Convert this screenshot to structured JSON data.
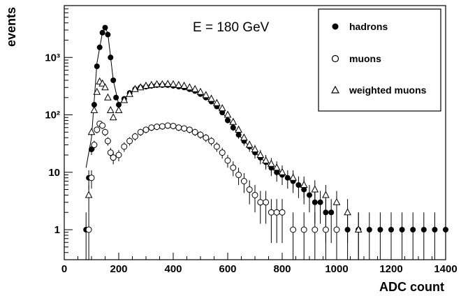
{
  "chart_data": {
    "type": "scatter",
    "annotation": "E = 180 GeV",
    "xlabel": "ADC count",
    "ylabel": "events",
    "xlim": [
      0,
      1400
    ],
    "ylim": [
      0.3,
      8000
    ],
    "yscale": "log",
    "x_ticks": [
      "0",
      "200",
      "400",
      "600",
      "800",
      "1000",
      "1200",
      "1400"
    ],
    "y_ticks": [
      {
        "value": 1,
        "label": "1"
      },
      {
        "value": 10,
        "label": "10"
      },
      {
        "value": 100,
        "label": "10²"
      },
      {
        "value": 1000,
        "label": "10³"
      }
    ],
    "legend": {
      "position": "top-right",
      "entries": [
        "hadrons",
        "muons",
        "weighted muons"
      ]
    },
    "series": [
      {
        "name": "hadrons",
        "marker": "filled-circle",
        "x": [
          80,
          90,
          100,
          110,
          120,
          130,
          140,
          150,
          160,
          170,
          180,
          190,
          200,
          220,
          240,
          260,
          280,
          300,
          320,
          340,
          360,
          380,
          400,
          420,
          440,
          460,
          480,
          500,
          520,
          540,
          560,
          580,
          600,
          620,
          640,
          660,
          680,
          700,
          720,
          740,
          760,
          780,
          800,
          820,
          840,
          860,
          880,
          900,
          920,
          940,
          960,
          980,
          1000,
          1040,
          1080,
          1120,
          1160,
          1200,
          1240,
          1280,
          1320,
          1360,
          1400
        ],
        "y": [
          1,
          8,
          25,
          150,
          700,
          1500,
          2700,
          3300,
          2500,
          1000,
          400,
          200,
          150,
          190,
          240,
          280,
          300,
          310,
          320,
          330,
          330,
          330,
          320,
          310,
          300,
          280,
          260,
          230,
          200,
          170,
          140,
          110,
          80,
          60,
          45,
          35,
          28,
          22,
          18,
          15,
          12,
          10,
          9,
          8,
          7,
          6,
          5,
          4,
          3,
          3,
          2,
          2,
          1,
          1,
          1,
          1,
          1,
          1,
          1,
          1,
          1,
          1,
          1
        ]
      },
      {
        "name": "muons",
        "marker": "open-circle",
        "x": [
          90,
          100,
          110,
          120,
          130,
          140,
          150,
          160,
          170,
          180,
          200,
          220,
          240,
          260,
          280,
          300,
          320,
          340,
          360,
          380,
          400,
          420,
          440,
          460,
          480,
          500,
          520,
          540,
          560,
          580,
          600,
          620,
          640,
          660,
          680,
          700,
          720,
          740,
          760,
          780,
          800,
          840,
          880,
          920,
          960,
          1000
        ],
        "y": [
          1,
          8,
          30,
          55,
          70,
          65,
          50,
          35,
          22,
          18,
          20,
          28,
          35,
          42,
          50,
          55,
          60,
          62,
          63,
          65,
          64,
          60,
          58,
          55,
          50,
          45,
          40,
          35,
          28,
          22,
          16,
          12,
          9,
          7,
          5,
          4,
          3,
          3,
          2,
          2,
          2,
          1,
          1,
          1,
          1,
          1
        ]
      },
      {
        "name": "weighted muons",
        "marker": "open-triangle",
        "x": [
          90,
          100,
          110,
          120,
          130,
          140,
          150,
          160,
          170,
          180,
          200,
          220,
          240,
          260,
          280,
          300,
          320,
          340,
          360,
          380,
          400,
          420,
          440,
          460,
          480,
          500,
          520,
          540,
          560,
          580,
          600,
          620,
          640,
          660,
          680,
          700,
          720,
          740,
          760,
          780,
          800,
          840,
          880,
          920,
          960,
          1000,
          1040,
          1080
        ],
        "y": [
          4,
          50,
          120,
          250,
          380,
          350,
          300,
          200,
          120,
          90,
          120,
          180,
          230,
          280,
          300,
          320,
          330,
          340,
          340,
          345,
          340,
          330,
          320,
          300,
          280,
          250,
          220,
          190,
          160,
          130,
          100,
          75,
          55,
          40,
          30,
          25,
          20,
          16,
          14,
          12,
          10,
          8,
          6,
          5,
          4,
          3,
          2,
          1
        ]
      },
      {
        "name": "",
        "marker": "line",
        "x": [
          80,
          100,
          120,
          140,
          150,
          160,
          180,
          200,
          240,
          280,
          320,
          360,
          400,
          440,
          480,
          520,
          560,
          600,
          640,
          680,
          720,
          760,
          800,
          840
        ],
        "y": [
          12,
          40,
          800,
          2700,
          3400,
          2600,
          400,
          150,
          240,
          300,
          320,
          330,
          325,
          300,
          260,
          200,
          140,
          85,
          45,
          28,
          18,
          12,
          10,
          7
        ]
      }
    ]
  }
}
